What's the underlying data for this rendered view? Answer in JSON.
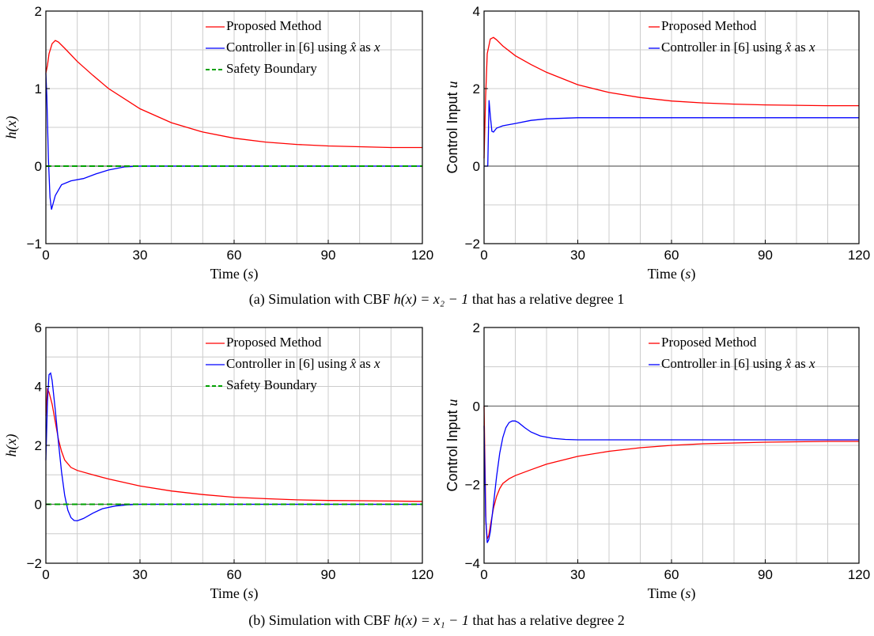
{
  "captions": {
    "a": {
      "prefix": "(a) Simulation with CBF ",
      "equation": "h(x) = x₂ − 1",
      "suffix": " that has a relative degree 1"
    },
    "b": {
      "prefix": "(b) Simulation with CBF ",
      "equation": "h(x) = x₁ − 1",
      "suffix": " that has a relative degree 2"
    }
  },
  "colors": {
    "proposed": "#ff0000",
    "controller": "#0000ff",
    "safety": "#00a000",
    "zero_line": "#666666",
    "grid": "#cccccc"
  },
  "chart_data": [
    {
      "id": "a-left",
      "type": "line",
      "xlabel": "Time (s)",
      "ylabel": "h(x)",
      "xlim": [
        0,
        120
      ],
      "ylim": [
        -1,
        2
      ],
      "xticks": [
        "0",
        "30",
        "60",
        "90",
        "120"
      ],
      "yticks": [
        "−1",
        "0",
        "1",
        "2"
      ],
      "grid": true,
      "legend_position": "top-right",
      "series": [
        {
          "name": "Proposed Method",
          "style": "solid",
          "color": "#ff0000",
          "x": [
            0,
            0.5,
            1,
            2,
            3,
            4,
            6,
            10,
            15,
            20,
            30,
            40,
            50,
            60,
            70,
            80,
            90,
            100,
            110,
            120
          ],
          "y": [
            1.2,
            1.3,
            1.45,
            1.58,
            1.62,
            1.6,
            1.52,
            1.35,
            1.17,
            1.0,
            0.74,
            0.56,
            0.44,
            0.36,
            0.31,
            0.28,
            0.26,
            0.25,
            0.24,
            0.24
          ]
        },
        {
          "name": "Controller in [6] using x̂ as x",
          "style": "solid",
          "color": "#0000ff",
          "x": [
            0,
            0.3,
            0.8,
            1.3,
            1.8,
            3,
            5,
            8,
            12,
            16,
            20,
            25,
            30,
            60,
            90,
            120
          ],
          "y": [
            1.2,
            0.9,
            0.1,
            -0.4,
            -0.56,
            -0.38,
            -0.24,
            -0.19,
            -0.16,
            -0.1,
            -0.05,
            -0.01,
            0,
            0,
            0,
            0
          ]
        },
        {
          "name": "Safety Boundary",
          "style": "dashed",
          "color": "#00a000",
          "x": [
            0,
            120
          ],
          "y": [
            0,
            0
          ]
        }
      ]
    },
    {
      "id": "a-right",
      "type": "line",
      "xlabel": "Time (s)",
      "ylabel": "Control Input u",
      "xlim": [
        0,
        120
      ],
      "ylim": [
        -2,
        4
      ],
      "xticks": [
        "0",
        "30",
        "60",
        "90",
        "120"
      ],
      "yticks": [
        "−2",
        "0",
        "2",
        "4"
      ],
      "grid": true,
      "legend_position": "top-right",
      "series": [
        {
          "name": "Proposed Method",
          "style": "solid",
          "color": "#ff0000",
          "x": [
            0,
            0.5,
            1,
            2,
            3,
            4,
            6,
            10,
            15,
            20,
            30,
            40,
            50,
            60,
            70,
            80,
            90,
            100,
            110,
            120
          ],
          "y": [
            0.2,
            1.8,
            2.9,
            3.28,
            3.32,
            3.26,
            3.1,
            2.85,
            2.62,
            2.42,
            2.1,
            1.9,
            1.77,
            1.68,
            1.63,
            1.6,
            1.58,
            1.57,
            1.56,
            1.56
          ]
        },
        {
          "name": "Controller in [6] using x̂ as x",
          "style": "solid",
          "color": "#0000ff",
          "x": [
            0,
            0.4,
            0.8,
            1.2,
            1.6,
            2,
            2.5,
            3,
            4,
            6,
            10,
            15,
            20,
            30,
            60,
            90,
            120
          ],
          "y": [
            0,
            0,
            0,
            0,
            1.7,
            1.3,
            0.9,
            0.88,
            0.98,
            1.04,
            1.1,
            1.18,
            1.22,
            1.25,
            1.25,
            1.25,
            1.25
          ]
        }
      ]
    },
    {
      "id": "b-left",
      "type": "line",
      "xlabel": "Time (s)",
      "ylabel": "h(x)",
      "xlim": [
        0,
        120
      ],
      "ylim": [
        -2,
        6
      ],
      "xticks": [
        "0",
        "30",
        "60",
        "90",
        "120"
      ],
      "yticks": [
        "−2",
        "0",
        "2",
        "4",
        "6"
      ],
      "grid": true,
      "legend_position": "top-right",
      "series": [
        {
          "name": "Proposed Method",
          "style": "solid",
          "color": "#ff0000",
          "x": [
            0,
            0.5,
            1,
            2,
            3,
            4,
            5,
            6,
            8,
            10,
            15,
            20,
            30,
            40,
            50,
            60,
            70,
            80,
            90,
            100,
            110,
            120
          ],
          "y": [
            3.0,
            3.9,
            3.8,
            3.4,
            2.8,
            2.2,
            1.8,
            1.5,
            1.25,
            1.15,
            1.0,
            0.86,
            0.62,
            0.45,
            0.33,
            0.24,
            0.19,
            0.15,
            0.13,
            0.12,
            0.11,
            0.1
          ]
        },
        {
          "name": "Controller in [6] using x̂ as x",
          "style": "solid",
          "color": "#0000ff",
          "x": [
            0,
            0.5,
            1,
            1.5,
            2,
            3,
            4,
            5,
            6,
            7,
            8,
            9,
            10,
            12,
            15,
            18,
            22,
            26,
            30,
            60,
            90,
            120
          ],
          "y": [
            1.5,
            3.5,
            4.4,
            4.45,
            4.2,
            3.2,
            2.1,
            1.1,
            0.3,
            -0.2,
            -0.45,
            -0.55,
            -0.56,
            -0.48,
            -0.3,
            -0.15,
            -0.06,
            -0.02,
            0,
            0,
            0,
            0
          ]
        },
        {
          "name": "Safety Boundary",
          "style": "dashed",
          "color": "#00a000",
          "x": [
            0,
            120
          ],
          "y": [
            0,
            0
          ]
        }
      ]
    },
    {
      "id": "b-right",
      "type": "line",
      "xlabel": "Time (s)",
      "ylabel": "Control Input u",
      "xlim": [
        0,
        120
      ],
      "ylim": [
        -4,
        2
      ],
      "xticks": [
        "0",
        "30",
        "60",
        "90",
        "120"
      ],
      "yticks": [
        "−4",
        "−2",
        "0",
        "2"
      ],
      "grid": true,
      "legend_position": "top-right",
      "series": [
        {
          "name": "Proposed Method",
          "style": "solid",
          "color": "#ff0000",
          "x": [
            0,
            0.3,
            0.6,
            1,
            1.5,
            2,
            3,
            4,
            5,
            6,
            8,
            10,
            15,
            20,
            30,
            40,
            50,
            60,
            70,
            80,
            90,
            100,
            110,
            120
          ],
          "y": [
            0,
            -1.5,
            -3.0,
            -3.38,
            -3.3,
            -3.05,
            -2.6,
            -2.3,
            -2.1,
            -1.97,
            -1.85,
            -1.77,
            -1.62,
            -1.48,
            -1.28,
            -1.15,
            -1.06,
            -1.0,
            -0.96,
            -0.94,
            -0.92,
            -0.91,
            -0.9,
            -0.9
          ]
        },
        {
          "name": "Controller in [6] using x̂ as x",
          "style": "solid",
          "color": "#0000ff",
          "x": [
            0,
            0.5,
            1,
            1.5,
            2,
            3,
            4,
            5,
            6,
            7,
            8,
            9,
            10,
            11,
            13,
            15,
            18,
            22,
            26,
            30,
            60,
            90,
            120
          ],
          "y": [
            -0.5,
            -2.8,
            -3.48,
            -3.4,
            -3.2,
            -2.5,
            -1.8,
            -1.2,
            -0.8,
            -0.55,
            -0.42,
            -0.38,
            -0.38,
            -0.42,
            -0.55,
            -0.66,
            -0.76,
            -0.82,
            -0.85,
            -0.86,
            -0.86,
            -0.86,
            -0.86
          ]
        }
      ]
    }
  ]
}
